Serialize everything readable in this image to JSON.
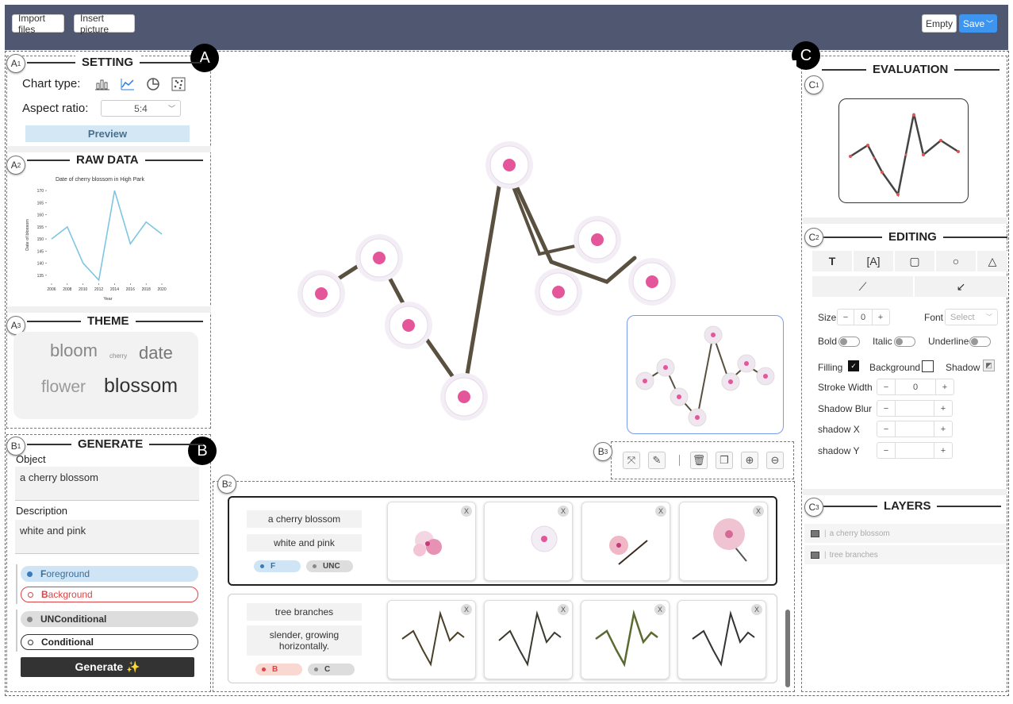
{
  "topbar": {
    "import_label": "Import files",
    "insert_label": "Insert picture",
    "empty_label": "Empty",
    "save_label": "Save"
  },
  "markers": {
    "a": "A",
    "b": "B",
    "c": "C",
    "a1": "A",
    "a1n": "1",
    "a2": "A",
    "a2n": "2",
    "a3": "A",
    "a3n": "3",
    "b1": "B",
    "b1n": "1",
    "b2": "B",
    "b2n": "2",
    "b3": "B",
    "b3n": "3",
    "c1": "C",
    "c1n": "1",
    "c2": "C",
    "c2n": "2",
    "c3": "C",
    "c3n": "3"
  },
  "setting": {
    "title": "SETTING",
    "chart_type_label": "Chart type:",
    "aspect_label": "Aspect ratio:",
    "aspect_value": "5:4",
    "preview_label": "Preview"
  },
  "raw_data": {
    "title": "RAW DATA"
  },
  "chart_data": {
    "type": "line",
    "title": "Date of cherry blossom in High Park",
    "xlabel": "Year",
    "ylabel": "Date of blossom",
    "x": [
      2006,
      2008,
      2010,
      2012,
      2014,
      2016,
      2018,
      2020
    ],
    "series": [
      {
        "values": [
          150,
          155,
          140,
          133,
          170,
          148,
          157,
          152
        ]
      }
    ],
    "xticks": [
      "2006",
      "2008",
      "2010",
      "2012",
      "2014",
      "2016",
      "2018",
      "2020"
    ],
    "yticks": [
      "135",
      "140",
      "145",
      "150",
      "155",
      "160",
      "165",
      "170"
    ],
    "xlim": [
      2005.5,
      2021
    ],
    "ylim": [
      132,
      172
    ],
    "line_color": "#7ec6e0",
    "grid": false
  },
  "theme": {
    "title": "THEME",
    "words": [
      {
        "text": "bloom"
      },
      {
        "text": "cherry"
      },
      {
        "text": "date"
      },
      {
        "text": "flower"
      },
      {
        "text": "blossom"
      }
    ]
  },
  "generate": {
    "title": "GENERATE",
    "object_label": "Object",
    "object_value": "a cherry blossom",
    "description_label": "Description",
    "description_value": "white and pink",
    "fg_first": "F",
    "fg_rest": "oreground",
    "bg_first": "B",
    "bg_rest": "ackground",
    "unc_first": "UNC",
    "unc_rest": "onditional",
    "cond_first": "C",
    "cond_rest": "onditional",
    "generate_label": "Generate ✨"
  },
  "results": [
    {
      "object": "a cherry blossom",
      "description": "white and pink",
      "tag1": "F",
      "tag2": "UNC"
    },
    {
      "object": "tree branches",
      "description": "slender, growing horizontally.",
      "tag1": "B",
      "tag2": "C"
    }
  ],
  "thumb_close": "X",
  "evaluation": {
    "title": "EVALUATION"
  },
  "editing": {
    "title": "EDITING",
    "size_label": "Size",
    "size_value": "0",
    "font_label": "Font",
    "font_placeholder": "Select",
    "bold_label": "Bold",
    "italic_label": "Italic",
    "underline_label": "Underline",
    "filling_label": "Filling",
    "background_label": "Background",
    "shadow_label": "Shadow",
    "stroke_label": "Stroke Width",
    "stroke_value": "0",
    "blur_label": "Shadow Blur",
    "shadowx_label": "shadow X",
    "shadowy_label": "shadow Y",
    "minus": "−",
    "plus": "+"
  },
  "layers": {
    "title": "LAYERS",
    "items": [
      "a cherry blossom",
      "tree branches"
    ]
  }
}
